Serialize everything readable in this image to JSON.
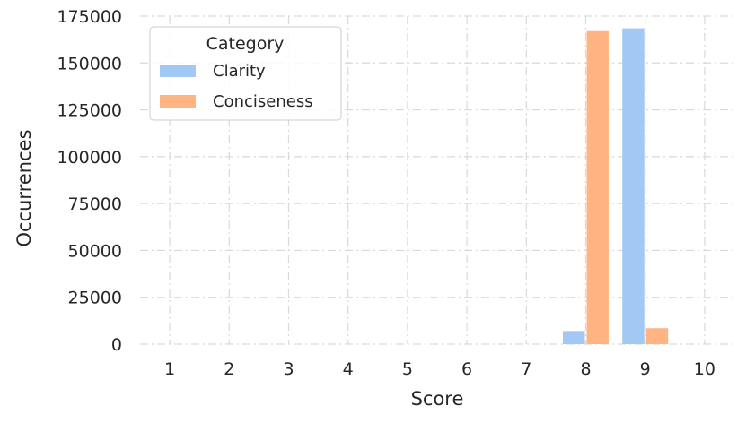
{
  "chart_data": {
    "type": "bar",
    "xlabel": "Score",
    "ylabel": "Occurrences",
    "categories": [
      "1",
      "2",
      "3",
      "4",
      "5",
      "6",
      "7",
      "8",
      "9",
      "10"
    ],
    "ylim": [
      0,
      175000
    ],
    "yticks": [
      0,
      25000,
      50000,
      75000,
      100000,
      125000,
      150000,
      175000
    ],
    "grid": true,
    "legend": {
      "title": "Category",
      "placement": "top-left"
    },
    "series": [
      {
        "name": "Clarity",
        "color": "#a1c9f4",
        "values": [
          0,
          0,
          0,
          0,
          0,
          0,
          0,
          7000,
          168500,
          0
        ]
      },
      {
        "name": "Conciseness",
        "color": "#ffb482",
        "values": [
          0,
          0,
          0,
          0,
          0,
          0,
          0,
          167000,
          8500,
          0
        ]
      }
    ]
  }
}
